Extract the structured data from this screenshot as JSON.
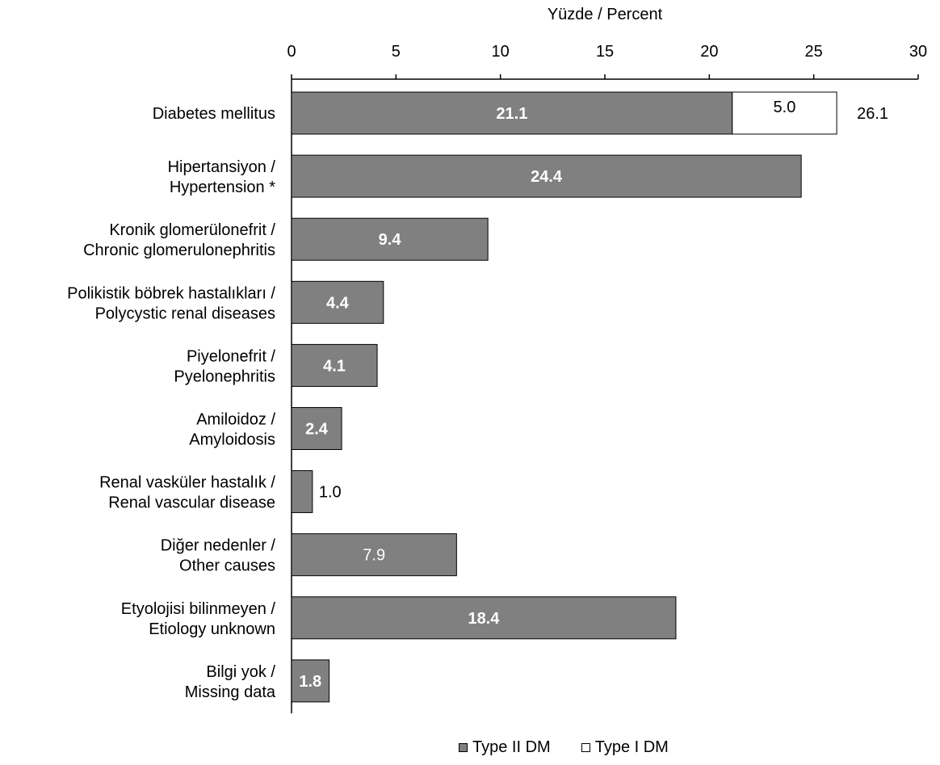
{
  "chart_data": {
    "type": "bar",
    "orientation": "horizontal",
    "stacked": true,
    "title": "",
    "xlabel": "Yüzde / Percent",
    "ylabel": "",
    "xlim": [
      0,
      30
    ],
    "x_ticks": [
      "0",
      "5",
      "10",
      "15",
      "20",
      "25",
      "30"
    ],
    "x_axis_position": "top",
    "grid": false,
    "legend_position": "bottom",
    "categories": [
      [
        "Diabetes mellitus"
      ],
      [
        "Hipertansiyon /",
        "Hypertension *"
      ],
      [
        "Kronik glomerülonefrit /",
        "Chronic glomerulonephritis"
      ],
      [
        "Polikistik böbrek hastalıkları /",
        "Polycystic renal diseases"
      ],
      [
        "Piyelonefrit /",
        "Pyelonephritis"
      ],
      [
        "Amiloidoz /",
        "Amyloidosis"
      ],
      [
        "Renal vasküler hastalık /",
        "Renal vascular disease"
      ],
      [
        "Diğer nedenler /",
        "Other causes"
      ],
      [
        "Etyolojisi bilinmeyen /",
        "Etiology unknown"
      ],
      [
        "Bilgi yok /",
        "Missing  data"
      ]
    ],
    "series": [
      {
        "name": "Type II DM",
        "color": "#808080",
        "values": [
          21.1,
          24.4,
          9.4,
          4.4,
          4.1,
          2.4,
          1.0,
          7.9,
          18.4,
          1.8
        ],
        "labels": [
          "21.1",
          "24.4",
          "9.4",
          "4.4",
          "4.1",
          "2.4",
          "1.0",
          "7.9",
          "18.4",
          "1.8"
        ]
      },
      {
        "name": "Type I DM",
        "color": "#ffffff",
        "values": [
          5.0,
          0,
          0,
          0,
          0,
          0,
          0,
          0,
          0,
          0
        ],
        "labels": [
          "5.0",
          "",
          "",
          "",
          "",
          "",
          "",
          "",
          "",
          ""
        ]
      }
    ],
    "totals": [
      {
        "index": 0,
        "value": 26.1,
        "label": "26.1"
      }
    ]
  }
}
